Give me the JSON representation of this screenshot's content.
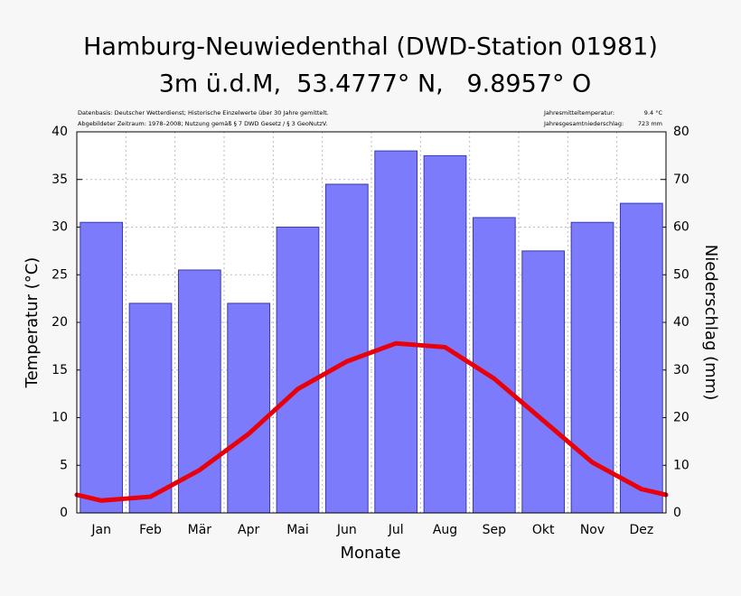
{
  "chart_data": {
    "type": "bar",
    "title": "Hamburg-Neuwiedenthal (DWD-Station 01981)",
    "subtitle": "3m ü.d.M,  53.4777° N,   9.8957° O",
    "notes_left": [
      "Datenbasis: Deutscher Wetterdienst; Historische Einzelwerte über 30 Jahre gemittelt.",
      "Abgebildeter Zeitraum: 1978–2008; Nutzung gemäß § 7 DWD Gesetz / § 3 GeoNutzV."
    ],
    "notes_right": [
      [
        "Jahresmitteltemperatur:",
        "9.4 °C"
      ],
      [
        "Jahresgesamtniederschlag:",
        "723 mm"
      ]
    ],
    "xlabel": "Monate",
    "ylabel": "Temperatur (°C)",
    "y2label": "Niederschlag (mm)",
    "categories": [
      "Jan",
      "Feb",
      "Mär",
      "Apr",
      "Mai",
      "Jun",
      "Jul",
      "Aug",
      "Sep",
      "Okt",
      "Nov",
      "Dez"
    ],
    "series": [
      {
        "type": "bar",
        "axis": "y2",
        "color": "#7b7bfb",
        "values": [
          61,
          44,
          51,
          44,
          60,
          69,
          76,
          75,
          62,
          55,
          61,
          65
        ]
      },
      {
        "type": "line",
        "color": "#e8000b",
        "values": [
          1.3,
          1.7,
          4.5,
          8.3,
          13,
          15.9,
          17.8,
          17.4,
          14.1,
          9.7,
          5.3,
          2.5
        ]
      }
    ],
    "ylim": [
      0,
      40
    ],
    "yticks": [
      0,
      5,
      10,
      15,
      20,
      25,
      30,
      35,
      40
    ],
    "y2lim": [
      0,
      80
    ],
    "y2ticks": [
      0,
      10,
      20,
      30,
      40,
      50,
      60,
      70,
      80
    ],
    "grid": true
  }
}
